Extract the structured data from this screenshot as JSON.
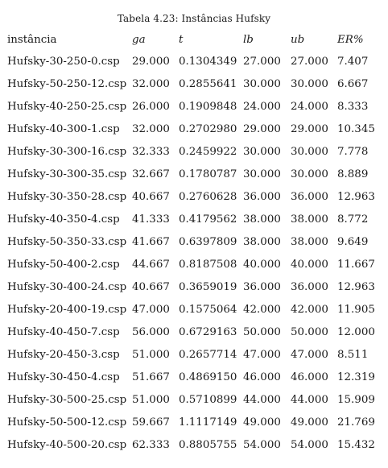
{
  "caption": "Tabela 4.23: Instâncias Hufsky",
  "headers": [
    "instância",
    "ga",
    "t",
    "lb",
    "ub",
    "ER%"
  ],
  "rows": [
    [
      "Hufsky-30-250-0.csp",
      "29.000",
      "0.1304349",
      "27.000",
      "27.000",
      "7.407"
    ],
    [
      "Hufsky-50-250-12.csp",
      "32.000",
      "0.2855641",
      "30.000",
      "30.000",
      "6.667"
    ],
    [
      "Hufsky-40-250-25.csp",
      "26.000",
      "0.1909848",
      "24.000",
      "24.000",
      "8.333"
    ],
    [
      "Hufsky-40-300-1.csp",
      "32.000",
      "0.2702980",
      "29.000",
      "29.000",
      "10.345"
    ],
    [
      "Hufsky-30-300-16.csp",
      "32.333",
      "0.2459922",
      "30.000",
      "30.000",
      "7.778"
    ],
    [
      "Hufsky-30-300-35.csp",
      "32.667",
      "0.1780787",
      "30.000",
      "30.000",
      "8.889"
    ],
    [
      "Hufsky-30-350-28.csp",
      "40.667",
      "0.2760628",
      "36.000",
      "36.000",
      "12.963"
    ],
    [
      "Hufsky-40-350-4.csp",
      "41.333",
      "0.4179562",
      "38.000",
      "38.000",
      "8.772"
    ],
    [
      "Hufsky-50-350-33.csp",
      "41.667",
      "0.6397809",
      "38.000",
      "38.000",
      "9.649"
    ],
    [
      "Hufsky-50-400-2.csp",
      "44.667",
      "0.8187508",
      "40.000",
      "40.000",
      "11.667"
    ],
    [
      "Hufsky-30-400-24.csp",
      "40.667",
      "0.3659019",
      "36.000",
      "36.000",
      "12.963"
    ],
    [
      "Hufsky-20-400-19.csp",
      "47.000",
      "0.1575064",
      "42.000",
      "42.000",
      "11.905"
    ],
    [
      "Hufsky-40-450-7.csp",
      "56.000",
      "0.6729163",
      "50.000",
      "50.000",
      "12.000"
    ],
    [
      "Hufsky-20-450-3.csp",
      "51.000",
      "0.2657714",
      "47.000",
      "47.000",
      "8.511"
    ],
    [
      "Hufsky-30-450-4.csp",
      "51.667",
      "0.4869150",
      "46.000",
      "46.000",
      "12.319"
    ],
    [
      "Hufsky-30-500-25.csp",
      "51.000",
      "0.5710899",
      "44.000",
      "44.000",
      "15.909"
    ],
    [
      "Hufsky-50-500-12.csp",
      "59.667",
      "1.1117149",
      "49.000",
      "49.000",
      "21.769"
    ],
    [
      "Hufsky-40-500-20.csp",
      "62.333",
      "0.8805755",
      "54.000",
      "54.000",
      "15.432"
    ]
  ]
}
